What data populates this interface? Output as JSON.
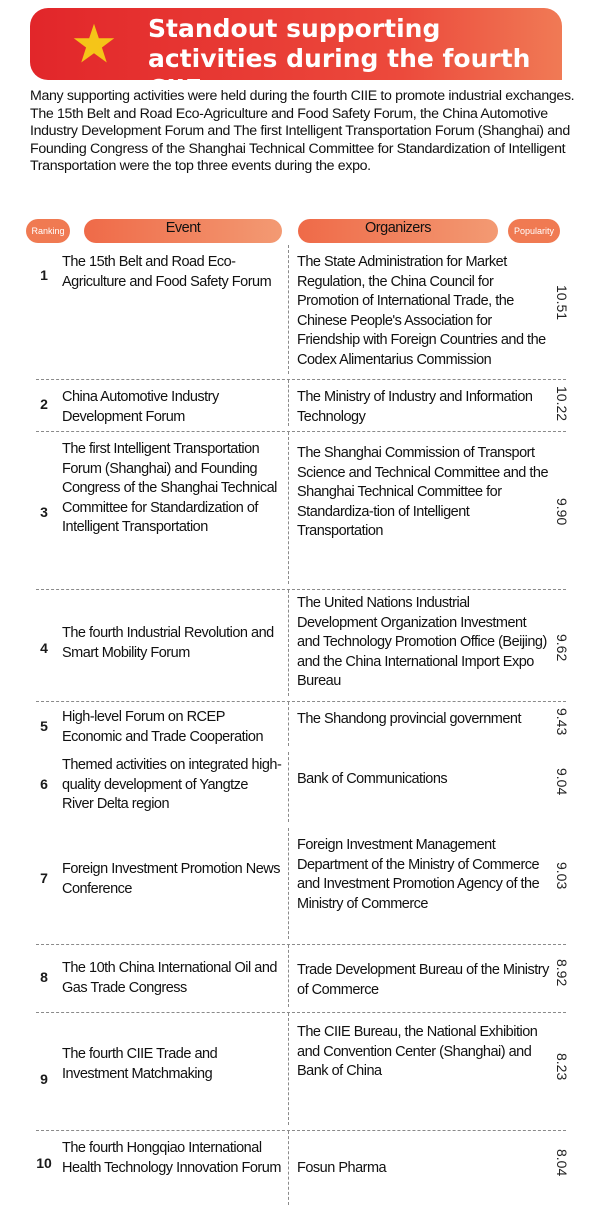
{
  "title": "Standout supporting activities during the fourth CIIE",
  "intro": "Many supporting activities were held during the fourth CIIE to promote industrial exchanges. The 15th Belt and Road Eco-Agriculture and Food Safety Forum, the China Automotive Industry Development Forum and The first Intelligent Transportation Forum (Shanghai) and Founding Congress of the Shanghai Technical Committee for Standardization of Intelligent Transportation were the top three events during the expo.",
  "headers": {
    "ranking": "Ranking",
    "event": "Event",
    "organizers": "Organizers",
    "popularity": "Popularity"
  },
  "rows": [
    {
      "rank": "1",
      "event": "The 15th Belt and Road Eco-Agriculture and Food Safety Forum",
      "organizers": "The State Administration for Market Regulation, the China Council for Promotion of International Trade, the Chinese People's Association for Friendship with Foreign Countries and the Codex Alimentarius Commission",
      "popularity": "10.51"
    },
    {
      "rank": "2",
      "event": "China Automotive Industry Development Forum",
      "organizers": "The Ministry of Industry and Information Technology",
      "popularity": "10.22"
    },
    {
      "rank": "3",
      "event": "The first Intelligent Transportation Forum (Shanghai) and Founding Congress of the Shanghai Technical Committee for Standardization of Intelligent Transportation",
      "organizers": "The Shanghai Commission of Transport Science and Technical Committee and the Shanghai Technical Committee for Standardiza-tion of Intelligent Transportation",
      "popularity": "9.90"
    },
    {
      "rank": "4",
      "event": "The fourth Industrial Revolution and Smart Mobility Forum",
      "organizers": "The United Nations Industrial Development Organization Investment and Technology Promotion Office (Beijing) and the China International Import Expo Bureau",
      "popularity": "9.62"
    },
    {
      "rank": "5",
      "event": "High-level Forum on RCEP Economic and Trade Cooperation",
      "organizers": "The Shandong provincial government",
      "popularity": "9.43"
    },
    {
      "rank": "6",
      "event": "Themed activities on integrated high-quality development of Yangtze River Delta region",
      "organizers": "Bank of Communications",
      "popularity": "9.04"
    },
    {
      "rank": "7",
      "event": "Foreign Investment Promotion News Conference",
      "organizers": "Foreign Investment Management Department of the Ministry of Commerce and Investment Promotion Agency of the Ministry of Commerce",
      "popularity": "9.03"
    },
    {
      "rank": "8",
      "event": "The 10th China International Oil and Gas Trade Congress",
      "organizers": "Trade Development Bureau of the Ministry of Commerce",
      "popularity": "8.92"
    },
    {
      "rank": "9",
      "event": "The fourth CIIE Trade and Investment Matchmaking",
      "organizers": "The CIIE Bureau, the National Exhibition and Convention Center (Shanghai) and Bank of China",
      "popularity": "8.23"
    },
    {
      "rank": "10",
      "event": "The fourth Hongqiao International Health Technology Innovation Forum",
      "organizers": "Fosun Pharma",
      "popularity": "8.04"
    }
  ]
}
